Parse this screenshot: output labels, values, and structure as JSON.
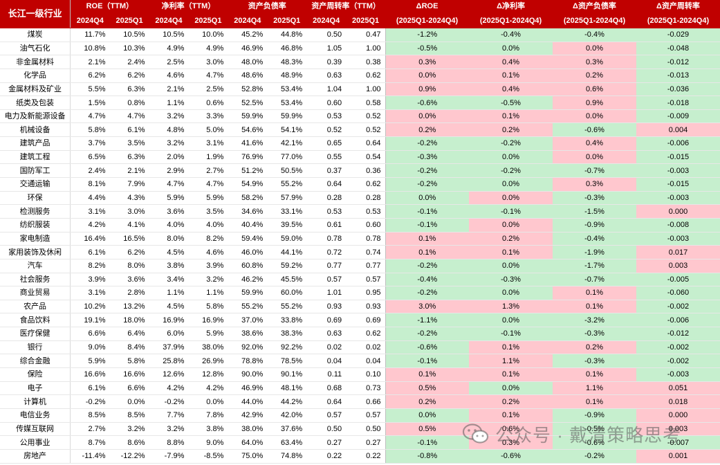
{
  "header": {
    "industry": "长江一级行业",
    "groups": [
      "ROE（TTM）",
      "净利率（TTM）",
      "资产负债率",
      "资产周转率（TTM）"
    ],
    "periods": [
      "2024Q4",
      "2025Q1"
    ],
    "deltas": [
      {
        "title": "ΔROE",
        "sub": "(2025Q1-2024Q4)"
      },
      {
        "title": "Δ净利率",
        "sub": "(2025Q1-2024Q4)"
      },
      {
        "title": "Δ资产负债率",
        "sub": "(2025Q1-2024Q4)"
      },
      {
        "title": "Δ资产周转率",
        "sub": "(2025Q1-2024Q4)"
      }
    ]
  },
  "colors": {
    "header_bg": "#c00000",
    "negative_bg": "#c6efce",
    "positive_bg": "#ffc7ce"
  },
  "rows": [
    [
      "煤炭",
      "11.7%",
      "10.5%",
      "10.5%",
      "10.0%",
      "45.2%",
      "44.8%",
      "0.50",
      "0.47",
      "-1.2%",
      "-0.4%",
      "-0.4%",
      "-0.029"
    ],
    [
      "油气石化",
      "10.8%",
      "10.3%",
      "4.9%",
      "4.9%",
      "46.9%",
      "46.8%",
      "1.05",
      "1.00",
      "-0.5%",
      "0.0%",
      "0.0%",
      "-0.048"
    ],
    [
      "非金属材料",
      "2.1%",
      "2.4%",
      "2.5%",
      "3.0%",
      "48.0%",
      "48.3%",
      "0.39",
      "0.38",
      "0.3%",
      "0.4%",
      "0.3%",
      "-0.012"
    ],
    [
      "化学品",
      "6.2%",
      "6.2%",
      "4.6%",
      "4.7%",
      "48.6%",
      "48.9%",
      "0.63",
      "0.62",
      "0.0%",
      "0.1%",
      "0.2%",
      "-0.013"
    ],
    [
      "金属材料及矿业",
      "5.5%",
      "6.3%",
      "2.1%",
      "2.5%",
      "52.8%",
      "53.4%",
      "1.04",
      "1.00",
      "0.9%",
      "0.4%",
      "0.6%",
      "-0.036"
    ],
    [
      "纸类及包装",
      "1.5%",
      "0.8%",
      "1.1%",
      "0.6%",
      "52.5%",
      "53.4%",
      "0.60",
      "0.58",
      "-0.6%",
      "-0.5%",
      "0.9%",
      "-0.018"
    ],
    [
      "电力及新能源设备",
      "4.7%",
      "4.7%",
      "3.2%",
      "3.3%",
      "59.9%",
      "59.9%",
      "0.53",
      "0.52",
      "0.0%",
      "0.1%",
      "0.0%",
      "-0.009"
    ],
    [
      "机械设备",
      "5.8%",
      "6.1%",
      "4.8%",
      "5.0%",
      "54.6%",
      "54.1%",
      "0.52",
      "0.52",
      "0.2%",
      "0.2%",
      "-0.6%",
      "0.004"
    ],
    [
      "建筑产品",
      "3.7%",
      "3.5%",
      "3.2%",
      "3.1%",
      "41.6%",
      "42.1%",
      "0.65",
      "0.64",
      "-0.2%",
      "-0.2%",
      "0.4%",
      "-0.006"
    ],
    [
      "建筑工程",
      "6.5%",
      "6.3%",
      "2.0%",
      "1.9%",
      "76.9%",
      "77.0%",
      "0.55",
      "0.54",
      "-0.3%",
      "0.0%",
      "0.0%",
      "-0.015"
    ],
    [
      "国防军工",
      "2.4%",
      "2.1%",
      "2.9%",
      "2.7%",
      "51.2%",
      "50.5%",
      "0.37",
      "0.36",
      "-0.2%",
      "-0.2%",
      "-0.7%",
      "-0.003"
    ],
    [
      "交通运输",
      "8.1%",
      "7.9%",
      "4.7%",
      "4.7%",
      "54.9%",
      "55.2%",
      "0.64",
      "0.62",
      "-0.2%",
      "0.0%",
      "0.3%",
      "-0.015"
    ],
    [
      "环保",
      "4.4%",
      "4.3%",
      "5.9%",
      "5.9%",
      "58.2%",
      "57.9%",
      "0.28",
      "0.28",
      "0.0%",
      "0.0%",
      "-0.3%",
      "-0.003"
    ],
    [
      "检测服务",
      "3.1%",
      "3.0%",
      "3.6%",
      "3.5%",
      "34.6%",
      "33.1%",
      "0.53",
      "0.53",
      "-0.1%",
      "-0.1%",
      "-1.5%",
      "0.000"
    ],
    [
      "纺织服装",
      "4.2%",
      "4.1%",
      "4.0%",
      "4.0%",
      "40.4%",
      "39.5%",
      "0.61",
      "0.60",
      "-0.1%",
      "0.0%",
      "-0.9%",
      "-0.008"
    ],
    [
      "家电制造",
      "16.4%",
      "16.5%",
      "8.0%",
      "8.2%",
      "59.4%",
      "59.0%",
      "0.78",
      "0.78",
      "0.1%",
      "0.2%",
      "-0.4%",
      "-0.003"
    ],
    [
      "家用装饰及休闲",
      "6.1%",
      "6.2%",
      "4.5%",
      "4.6%",
      "46.0%",
      "44.1%",
      "0.72",
      "0.74",
      "0.1%",
      "0.1%",
      "-1.9%",
      "0.017"
    ],
    [
      "汽车",
      "8.2%",
      "8.0%",
      "3.8%",
      "3.9%",
      "60.8%",
      "59.2%",
      "0.77",
      "0.77",
      "-0.2%",
      "0.0%",
      "-1.7%",
      "0.003"
    ],
    [
      "社会服务",
      "3.9%",
      "3.6%",
      "3.4%",
      "3.2%",
      "46.2%",
      "45.5%",
      "0.57",
      "0.57",
      "-0.4%",
      "-0.3%",
      "-0.7%",
      "-0.005"
    ],
    [
      "商业贸易",
      "3.1%",
      "2.8%",
      "1.1%",
      "1.1%",
      "59.9%",
      "60.0%",
      "1.01",
      "0.95",
      "-0.2%",
      "0.0%",
      "0.1%",
      "-0.060"
    ],
    [
      "农产品",
      "10.2%",
      "13.2%",
      "4.5%",
      "5.8%",
      "55.2%",
      "55.2%",
      "0.93",
      "0.93",
      "3.0%",
      "1.3%",
      "0.1%",
      "-0.002"
    ],
    [
      "食品饮料",
      "19.1%",
      "18.0%",
      "16.9%",
      "16.9%",
      "37.0%",
      "33.8%",
      "0.69",
      "0.69",
      "-1.1%",
      "0.0%",
      "-3.2%",
      "-0.006"
    ],
    [
      "医疗保健",
      "6.6%",
      "6.4%",
      "6.0%",
      "5.9%",
      "38.6%",
      "38.3%",
      "0.63",
      "0.62",
      "-0.2%",
      "-0.1%",
      "-0.3%",
      "-0.012"
    ],
    [
      "银行",
      "9.0%",
      "8.4%",
      "37.9%",
      "38.0%",
      "92.0%",
      "92.2%",
      "0.02",
      "0.02",
      "-0.6%",
      "0.1%",
      "0.2%",
      "-0.002"
    ],
    [
      "综合金融",
      "5.9%",
      "5.8%",
      "25.8%",
      "26.9%",
      "78.8%",
      "78.5%",
      "0.04",
      "0.04",
      "-0.1%",
      "1.1%",
      "-0.3%",
      "-0.002"
    ],
    [
      "保险",
      "16.6%",
      "16.6%",
      "12.6%",
      "12.8%",
      "90.0%",
      "90.1%",
      "0.11",
      "0.10",
      "0.1%",
      "0.1%",
      "0.1%",
      "-0.003"
    ],
    [
      "电子",
      "6.1%",
      "6.6%",
      "4.2%",
      "4.2%",
      "46.9%",
      "48.1%",
      "0.68",
      "0.73",
      "0.5%",
      "0.0%",
      "1.1%",
      "0.051"
    ],
    [
      "计算机",
      "-0.2%",
      "0.0%",
      "-0.2%",
      "0.0%",
      "44.0%",
      "44.2%",
      "0.64",
      "0.66",
      "0.2%",
      "0.2%",
      "0.1%",
      "0.018"
    ],
    [
      "电信业务",
      "8.5%",
      "8.5%",
      "7.7%",
      "7.8%",
      "42.9%",
      "42.0%",
      "0.57",
      "0.57",
      "0.0%",
      "0.1%",
      "-0.9%",
      "0.000"
    ],
    [
      "传媒互联网",
      "2.7%",
      "3.2%",
      "3.2%",
      "3.8%",
      "38.0%",
      "37.6%",
      "0.50",
      "0.50",
      "0.5%",
      "0.6%",
      "-0.5%",
      "0.003"
    ],
    [
      "公用事业",
      "8.7%",
      "8.6%",
      "8.8%",
      "9.0%",
      "64.0%",
      "63.4%",
      "0.27",
      "0.27",
      "-0.1%",
      "0.3%",
      "-0.6%",
      "-0.007"
    ],
    [
      "房地产",
      "-11.4%",
      "-12.2%",
      "-7.9%",
      "-8.5%",
      "75.0%",
      "74.8%",
      "0.22",
      "0.22",
      "-0.8%",
      "-0.6%",
      "-0.2%",
      "0.001"
    ]
  ],
  "watermark": {
    "icon": "wechat-icon",
    "text": "公众号 · 戴清策略思考"
  }
}
